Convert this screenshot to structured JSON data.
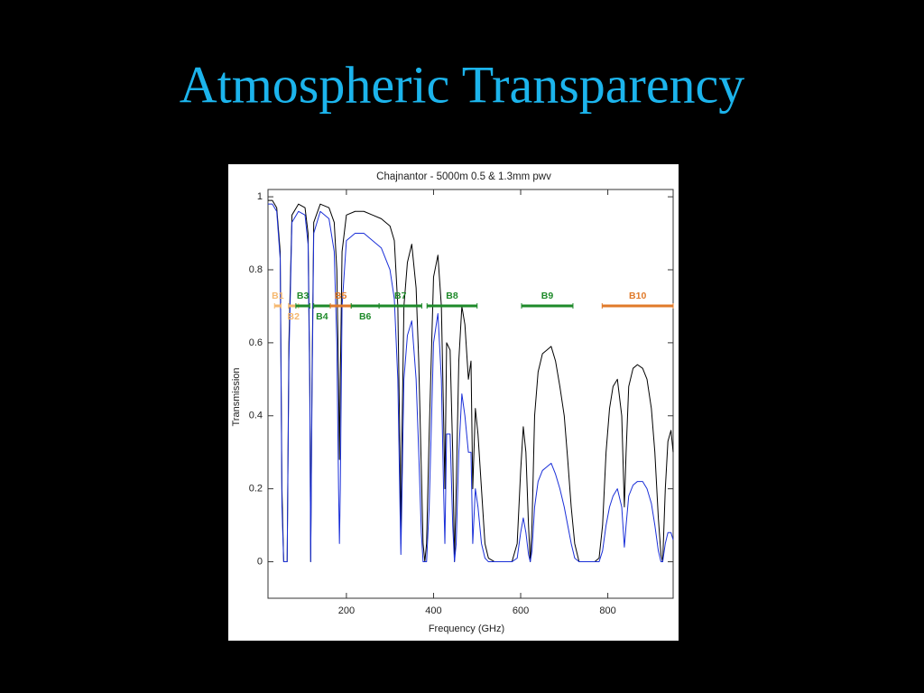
{
  "slide": {
    "title": "Atmospheric Transparency"
  },
  "chart_data": {
    "type": "line",
    "title": "Chajnantor - 5000m 0.5 & 1.3mm pwv",
    "x_label": "Frequency (GHz)",
    "y_label": "Transmission",
    "xlim": [
      20,
      950
    ],
    "ylim": [
      -0.1,
      1.02
    ],
    "xticks": [
      200,
      400,
      600,
      800
    ],
    "yticks": [
      0,
      0.2,
      0.4,
      0.6,
      0.8,
      1
    ],
    "x": [
      20,
      30,
      40,
      48,
      52,
      56,
      64,
      68,
      75,
      90,
      105,
      112,
      116,
      118,
      121,
      125,
      140,
      160,
      172,
      178,
      182,
      184,
      186,
      190,
      200,
      220,
      240,
      260,
      280,
      300,
      310,
      318,
      323,
      325,
      327,
      332,
      340,
      350,
      360,
      366,
      372,
      376,
      380,
      384,
      390,
      400,
      410,
      418,
      423,
      426,
      430,
      438,
      444,
      448,
      452,
      458,
      465,
      472,
      480,
      486,
      490,
      496,
      502,
      510,
      518,
      526,
      540,
      560,
      580,
      592,
      600,
      606,
      612,
      618,
      622,
      626,
      632,
      640,
      650,
      660,
      670,
      680,
      690,
      700,
      708,
      716,
      724,
      734,
      750,
      770,
      780,
      788,
      796,
      804,
      812,
      822,
      832,
      838,
      842,
      848,
      858,
      868,
      880,
      890,
      900,
      908,
      916,
      922,
      926,
      932,
      938,
      945,
      950
    ],
    "series": [
      {
        "color": "#000000",
        "values": [
          0.99,
          0.99,
          0.97,
          0.85,
          0.2,
          0,
          0,
          0.6,
          0.95,
          0.98,
          0.97,
          0.9,
          0.5,
          0,
          0.5,
          0.93,
          0.98,
          0.97,
          0.93,
          0.8,
          0.5,
          0.28,
          0.5,
          0.85,
          0.95,
          0.96,
          0.96,
          0.95,
          0.94,
          0.92,
          0.88,
          0.7,
          0.3,
          0.05,
          0.3,
          0.7,
          0.82,
          0.87,
          0.75,
          0.55,
          0.25,
          0.05,
          0,
          0.05,
          0.35,
          0.78,
          0.84,
          0.7,
          0.4,
          0.2,
          0.6,
          0.58,
          0.3,
          0,
          0.2,
          0.55,
          0.7,
          0.65,
          0.5,
          0.55,
          0.2,
          0.42,
          0.35,
          0.2,
          0.05,
          0.01,
          0,
          0,
          0,
          0.05,
          0.25,
          0.37,
          0.3,
          0.1,
          0,
          0.1,
          0.4,
          0.52,
          0.57,
          0.58,
          0.59,
          0.55,
          0.48,
          0.4,
          0.28,
          0.15,
          0.05,
          0,
          0,
          0,
          0.01,
          0.1,
          0.3,
          0.42,
          0.48,
          0.5,
          0.4,
          0.15,
          0.3,
          0.48,
          0.53,
          0.54,
          0.53,
          0.5,
          0.42,
          0.3,
          0.12,
          0.02,
          0,
          0.2,
          0.33,
          0.36,
          0.3
        ]
      },
      {
        "color": "#1a2fd8",
        "values": [
          0.98,
          0.98,
          0.96,
          0.83,
          0.15,
          0,
          0,
          0.55,
          0.93,
          0.96,
          0.95,
          0.87,
          0.45,
          0,
          0.45,
          0.9,
          0.96,
          0.94,
          0.85,
          0.6,
          0.2,
          0.05,
          0.2,
          0.7,
          0.88,
          0.9,
          0.9,
          0.88,
          0.86,
          0.8,
          0.72,
          0.5,
          0.15,
          0.02,
          0.15,
          0.5,
          0.62,
          0.66,
          0.5,
          0.3,
          0.08,
          0,
          0,
          0,
          0.15,
          0.6,
          0.68,
          0.5,
          0.2,
          0.05,
          0.35,
          0.35,
          0.1,
          0,
          0.05,
          0.3,
          0.46,
          0.4,
          0.3,
          0.3,
          0.05,
          0.2,
          0.15,
          0.05,
          0.01,
          0,
          0,
          0,
          0,
          0.01,
          0.08,
          0.12,
          0.08,
          0.02,
          0,
          0.03,
          0.15,
          0.22,
          0.25,
          0.26,
          0.27,
          0.24,
          0.2,
          0.15,
          0.1,
          0.05,
          0.01,
          0,
          0,
          0,
          0,
          0.03,
          0.1,
          0.15,
          0.18,
          0.2,
          0.15,
          0.04,
          0.1,
          0.18,
          0.21,
          0.22,
          0.22,
          0.2,
          0.16,
          0.1,
          0.03,
          0,
          0,
          0.05,
          0.08,
          0.08,
          0.06
        ]
      }
    ],
    "bands": [
      {
        "label": "B1",
        "range": [
          35,
          50
        ],
        "color": "#f5b870",
        "label_position": "above"
      },
      {
        "label": "B2",
        "range": [
          67,
          90
        ],
        "color": "#f5b870",
        "label_position": "below"
      },
      {
        "label": "B3",
        "range": [
          84,
          116
        ],
        "color": "#1e8a2a",
        "label_position": "above"
      },
      {
        "label": "B4",
        "range": [
          125,
          163
        ],
        "color": "#1e8a2a",
        "label_position": "below"
      },
      {
        "label": "B5",
        "range": [
          163,
          211
        ],
        "color": "#e07a2a",
        "label_position": "above"
      },
      {
        "label": "B6",
        "range": [
          211,
          275
        ],
        "color": "#1e8a2a",
        "label_position": "below"
      },
      {
        "label": "B7",
        "range": [
          275,
          373
        ],
        "color": "#1e8a2a",
        "label_position": "above"
      },
      {
        "label": "B8",
        "range": [
          385,
          500
        ],
        "color": "#1e8a2a",
        "label_position": "above"
      },
      {
        "label": "B9",
        "range": [
          602,
          720
        ],
        "color": "#1e8a2a",
        "label_position": "above"
      },
      {
        "label": "B10",
        "range": [
          787,
          950
        ],
        "color": "#e07a2a",
        "label_position": "above"
      }
    ]
  }
}
